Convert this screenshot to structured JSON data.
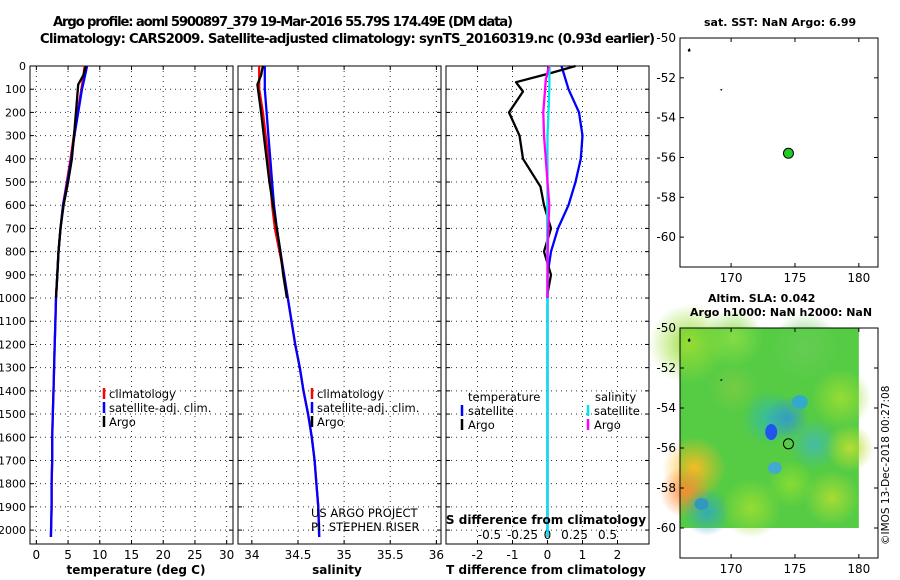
{
  "header": {
    "line1": "Argo profile: aoml 5900897_379 19-Mar-2016 55.79S 174.49E (DM data)",
    "line2": "Climatology: CARS2009. Satellite-adjusted climatology: synTS_20160319.nc (0.93d earlier)"
  },
  "credits": {
    "project": "US ARGO PROJECT",
    "pi": "PI: STEPHEN RISER",
    "imos": "©IMOS 13-Dec-2018 00:27:08"
  },
  "colors": {
    "climatology": "#ff0000",
    "satellite": "#0000ff",
    "argo": "#000000",
    "sal_satellite": "#00e5ee",
    "sal_argo": "#ff00ff",
    "marker": "#22cc22"
  },
  "chart_data": [
    {
      "type": "line",
      "panel": "temperature",
      "xlabel": "temperature (deg C)",
      "xlim": [
        -1,
        31
      ],
      "xticks": [
        "0",
        "5",
        "10",
        "15",
        "20",
        "25",
        "30"
      ],
      "xtick_values": [
        0,
        5,
        10,
        15,
        20,
        25,
        30
      ],
      "ylim": [
        2060,
        0
      ],
      "yticks": [
        "0",
        "100",
        "200",
        "300",
        "400",
        "500",
        "600",
        "700",
        "800",
        "900",
        "1000",
        "1100",
        "1200",
        "1300",
        "1400",
        "1500",
        "1600",
        "1700",
        "1800",
        "1900",
        "2000"
      ],
      "ytick_values": [
        0,
        100,
        200,
        300,
        400,
        500,
        600,
        700,
        800,
        900,
        1000,
        1100,
        1200,
        1300,
        1400,
        1500,
        1600,
        1700,
        1800,
        1900,
        2000
      ],
      "grid": true,
      "legend": [
        "climatology",
        "satellite-adj. clim.",
        "Argo"
      ],
      "legend_position": "lower-center",
      "series": [
        {
          "name": "climatology",
          "color": "#ff0000",
          "x": [
            7.6,
            7.4,
            7.1,
            6.5,
            5.9,
            5.4,
            4.8,
            4.2,
            3.8,
            3.5,
            3.3,
            3.1,
            3.0,
            2.9,
            2.8,
            2.7,
            2.6,
            2.5,
            2.5,
            2.4,
            2.4,
            2.3
          ],
          "y": [
            0,
            50,
            100,
            200,
            300,
            400,
            500,
            600,
            700,
            800,
            900,
            1000,
            1100,
            1200,
            1300,
            1400,
            1500,
            1600,
            1700,
            1800,
            1900,
            2030
          ]
        },
        {
          "name": "satellite-adj. clim.",
          "color": "#0000ff",
          "x": [
            8.0,
            7.6,
            7.2,
            6.6,
            6.0,
            5.5,
            4.9,
            4.2,
            3.8,
            3.5,
            3.3,
            3.1,
            3.0,
            2.9,
            2.8,
            2.7,
            2.6,
            2.5,
            2.5,
            2.4,
            2.4,
            2.3
          ],
          "y": [
            0,
            50,
            100,
            200,
            300,
            400,
            500,
            600,
            700,
            800,
            900,
            1000,
            1100,
            1200,
            1300,
            1400,
            1500,
            1600,
            1700,
            1800,
            1900,
            2030
          ]
        },
        {
          "name": "Argo",
          "color": "#000000",
          "x": [
            7.8,
            7.4,
            6.6,
            6.4,
            6.0,
            5.6,
            5.0,
            4.3,
            3.8,
            3.5,
            3.3,
            3.1
          ],
          "y": [
            0,
            40,
            80,
            150,
            280,
            400,
            500,
            600,
            700,
            800,
            900,
            1000
          ]
        }
      ]
    },
    {
      "type": "line",
      "panel": "salinity",
      "xlabel": "salinity",
      "xlim": [
        33.85,
        36.05
      ],
      "xticks": [
        "34",
        "34.5",
        "35",
        "35.5",
        "36"
      ],
      "xtick_values": [
        34,
        34.5,
        35,
        35.5,
        36
      ],
      "ylim": [
        2060,
        0
      ],
      "ytick_values": [
        0,
        100,
        200,
        300,
        400,
        500,
        600,
        700,
        800,
        900,
        1000,
        1100,
        1200,
        1300,
        1400,
        1500,
        1600,
        1700,
        1800,
        1900,
        2000
      ],
      "grid": true,
      "legend": [
        "climatology",
        "satellite-adj. clim.",
        "Argo"
      ],
      "legend_position": "lower-center",
      "series": [
        {
          "name": "climatology",
          "color": "#ff0000",
          "x": [
            34.08,
            34.08,
            34.12,
            34.15,
            34.18,
            34.2,
            34.22,
            34.25,
            34.3,
            34.35,
            34.39,
            34.43,
            34.47,
            34.52,
            34.56,
            34.61,
            34.65,
            34.68,
            34.7,
            34.72,
            34.73
          ],
          "y": [
            0,
            100,
            200,
            300,
            400,
            500,
            600,
            700,
            800,
            900,
            1000,
            1100,
            1200,
            1300,
            1400,
            1500,
            1600,
            1700,
            1800,
            1900,
            2030
          ]
        },
        {
          "name": "satellite-adj. clim.",
          "color": "#0000ff",
          "x": [
            34.14,
            34.14,
            34.16,
            34.18,
            34.2,
            34.22,
            34.24,
            34.27,
            34.31,
            34.35,
            34.39,
            34.43,
            34.47,
            34.52,
            34.56,
            34.61,
            34.65,
            34.68,
            34.7,
            34.72,
            34.73
          ],
          "y": [
            0,
            100,
            200,
            300,
            400,
            500,
            600,
            700,
            800,
            900,
            1000,
            1100,
            1200,
            1300,
            1400,
            1500,
            1600,
            1700,
            1800,
            1900,
            2030
          ]
        },
        {
          "name": "Argo",
          "color": "#000000",
          "x": [
            34.12,
            34.1,
            34.06,
            34.1,
            34.13,
            34.16,
            34.19,
            34.23,
            34.27,
            34.31,
            34.34,
            34.38
          ],
          "y": [
            0,
            40,
            80,
            200,
            300,
            400,
            500,
            600,
            700,
            800,
            900,
            1000
          ]
        }
      ]
    },
    {
      "type": "line",
      "panel": "differences",
      "xlabel": "T difference from climatology",
      "xlabel2": "S difference from climatology",
      "xlim": [
        -2.9,
        2.9
      ],
      "xticks": [
        "-2",
        "-1",
        "0",
        "1",
        "2"
      ],
      "xtick_values": [
        -2,
        -1,
        0,
        1,
        2
      ],
      "xticks2": [
        "-0.5",
        "-0.25",
        "0",
        "0.25",
        "0.5"
      ],
      "ylim": [
        2060,
        0
      ],
      "ytick_values": [
        0,
        100,
        200,
        300,
        400,
        500,
        600,
        700,
        800,
        900,
        1000,
        1100,
        1200,
        1300,
        1400,
        1500,
        1600,
        1700,
        1800,
        1900,
        2000
      ],
      "grid": true,
      "legend_temperature": {
        "title": "temperature",
        "items": [
          "satellite",
          "Argo"
        ]
      },
      "legend_salinity": {
        "title": "salinity",
        "items": [
          "satellite",
          "Argo"
        ]
      },
      "series": [
        {
          "name": "temperature satellite",
          "color": "#0000ff",
          "x": [
            0.4,
            0.6,
            0.9,
            1.0,
            0.95,
            0.8,
            0.6,
            0.3,
            0.1,
            0.0,
            0.0,
            0.0,
            0.0,
            0.0,
            0.0,
            0.0,
            0.0,
            0.0,
            0.0,
            0.0
          ],
          "y": [
            0,
            100,
            200,
            300,
            400,
            500,
            600,
            700,
            800,
            900,
            1000,
            1200,
            1400,
            1500,
            1600,
            1700,
            1800,
            1900,
            2000,
            2030
          ]
        },
        {
          "name": "temperature Argo",
          "color": "#000000",
          "x": [
            0.8,
            0.1,
            -0.9,
            -0.7,
            -1.1,
            -0.8,
            -0.7,
            -0.2,
            -0.1,
            0.1,
            -0.1,
            0.1,
            0.0,
            0.0
          ],
          "y": [
            0,
            30,
            70,
            110,
            200,
            300,
            400,
            520,
            600,
            700,
            800,
            900,
            980,
            1000
          ]
        },
        {
          "name": "salinity satellite",
          "color": "#00e5ee",
          "x": [
            0.06,
            0.05,
            0.03,
            0.0,
            0.0,
            0.0,
            -0.01,
            0.0,
            0.0,
            0.0,
            0.0,
            0.0,
            0.0,
            0.0,
            0.0
          ],
          "y": [
            0,
            100,
            200,
            300,
            400,
            500,
            700,
            900,
            1100,
            1300,
            1500,
            1700,
            1900,
            2000,
            2030
          ]
        },
        {
          "name": "salinity Argo",
          "color": "#ff00ff",
          "x": [
            0.04,
            -0.05,
            -0.12,
            -0.1,
            -0.05,
            0.0,
            0.05,
            0.02,
            0.0,
            0.0
          ],
          "y": [
            0,
            60,
            200,
            300,
            400,
            500,
            600,
            700,
            850,
            1000
          ]
        }
      ]
    },
    {
      "type": "scatter",
      "panel": "map-sst",
      "title": "sat. SST: NaN Argo: 6.99",
      "xlim": [
        166,
        181.5
      ],
      "ylim": [
        -61.5,
        -50
      ],
      "xticks": [
        "170",
        "175",
        "180"
      ],
      "xtick_values": [
        170,
        175,
        180
      ],
      "yticks": [
        "-50",
        "-52",
        "-54",
        "-56",
        "-58",
        "-60"
      ],
      "ytick_values": [
        -50,
        -52,
        -54,
        -56,
        -58,
        -60
      ],
      "points": [
        {
          "lon": 174.49,
          "lat": -55.79,
          "label": "Argo profile"
        }
      ]
    },
    {
      "type": "heatmap",
      "panel": "map-sla",
      "title": "Altim. SLA: 0.042",
      "subtitle": "Argo h1000: NaN h2000: NaN",
      "xlim": [
        166,
        181.5
      ],
      "ylim": [
        -61.5,
        -50
      ],
      "xticks": [
        "170",
        "175",
        "180"
      ],
      "xtick_values": [
        170,
        175,
        180
      ],
      "yticks": [
        "-50",
        "-52",
        "-54",
        "-56",
        "-58",
        "-60"
      ],
      "ytick_values": [
        -50,
        -52,
        -54,
        -56,
        -58,
        -60
      ],
      "points": [
        {
          "lon": 174.49,
          "lat": -55.79,
          "label": "Argo profile"
        }
      ]
    }
  ]
}
